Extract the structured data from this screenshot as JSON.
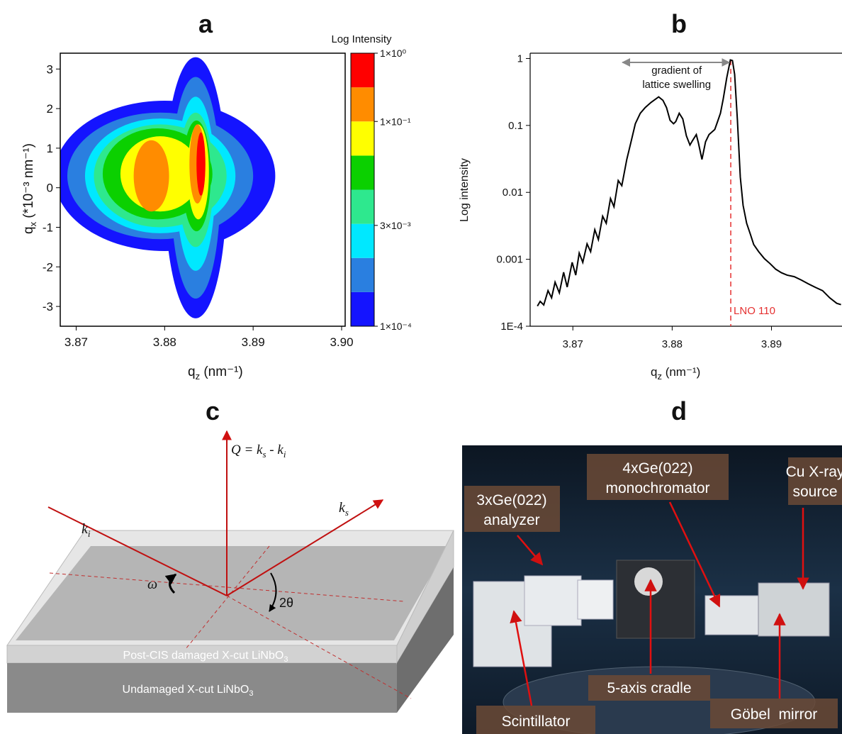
{
  "figure": {
    "panel_labels": [
      "a",
      "b",
      "c",
      "d"
    ]
  },
  "chart_data": [
    {
      "type": "contour",
      "x_label": [
        "q",
        "z",
        " (nm⁻¹)"
      ],
      "y_label": [
        "q",
        "x",
        " (*10⁻³ nm⁻¹)"
      ],
      "xlim": [
        3.8682,
        3.9004
      ],
      "ylim": [
        -3.5,
        3.4
      ],
      "xticks": [
        3.87,
        3.88,
        3.89,
        {
          "value": 3.9,
          "label": "3.90"
        }
      ],
      "yticks": [
        -3,
        -2,
        -1,
        0,
        1,
        2,
        3
      ],
      "colorbar": {
        "title": "Log Intensity",
        "log": true,
        "lim": [
          0.0001,
          1
        ],
        "ticks": [
          {
            "value": 0.0001,
            "label": "1×10⁻⁴"
          },
          {
            "value": 0.003,
            "label": "3×10⁻³"
          },
          {
            "value": 0.1,
            "label": "1×10⁻¹"
          },
          {
            "value": 1,
            "label": "1×10⁰"
          }
        ],
        "levels": [
          0.0001,
          0.000316,
          0.001,
          0.00316,
          0.01,
          0.0316,
          0.1,
          0.316,
          1
        ],
        "colors": [
          "#1414ff",
          "#2a7fe0",
          "#00e8ff",
          "#2ee88e",
          "#0bd000",
          "#ffff00",
          "#ff8c00",
          "#ff0000"
        ]
      },
      "regions": [
        {
          "qz": 3.88,
          "qx": 0.3,
          "rqz": 0.0125,
          "rqx": 1.9,
          "value": 0.0001
        },
        {
          "qz": 3.8835,
          "qx": 0,
          "rqz": 0.0035,
          "rqx": 3.3,
          "value": 0.0001
        },
        {
          "qz": 3.8795,
          "qx": 0.3,
          "rqz": 0.0105,
          "rqx": 1.6,
          "value": 0.000316
        },
        {
          "qz": 3.8835,
          "qx": 0,
          "rqz": 0.0028,
          "rqx": 2.8,
          "value": 0.000316
        },
        {
          "qz": 3.8795,
          "qx": 0.3,
          "rqz": 0.0085,
          "rqx": 1.45,
          "value": 0.001
        },
        {
          "qz": 3.8835,
          "qx": 0.1,
          "rqz": 0.0022,
          "rqx": 2.2,
          "value": 0.001
        },
        {
          "qz": 3.8795,
          "qx": 0.3,
          "rqz": 0.0075,
          "rqx": 1.3,
          "value": 0.00316
        },
        {
          "qz": 3.8835,
          "qx": 0.2,
          "rqz": 0.002,
          "rqx": 1.7,
          "value": 0.00316
        },
        {
          "qz": 3.8792,
          "qx": 0.35,
          "rqz": 0.0062,
          "rqx": 1.15,
          "value": 0.01
        },
        {
          "qz": 3.8836,
          "qx": 0.3,
          "rqz": 0.0016,
          "rqx": 1.4,
          "value": 0.01
        },
        {
          "qz": 3.8795,
          "qx": 0.35,
          "rqz": 0.0045,
          "rqx": 0.95,
          "value": 0.0316
        },
        {
          "qz": 3.8838,
          "qx": 0.4,
          "rqz": 0.0012,
          "rqx": 1.2,
          "value": 0.0316
        },
        {
          "qz": 3.8785,
          "qx": 0.3,
          "rqz": 0.002,
          "rqx": 0.9,
          "value": 0.1
        },
        {
          "qz": 3.8837,
          "qx": 0.6,
          "rqz": 0.0009,
          "rqx": 1.0,
          "value": 0.1
        },
        {
          "qz": 3.8841,
          "qx": 0.6,
          "rqz": 0.0005,
          "rqx": 0.8,
          "value": 0.316
        }
      ]
    },
    {
      "type": "line",
      "x_label": [
        "q",
        "z",
        " (nm⁻¹)"
      ],
      "y_label": "Log intensity",
      "log_y": true,
      "xlim": [
        3.8657,
        3.8971
      ],
      "ylim": [
        0.0001,
        1.2
      ],
      "xticks": [
        3.87,
        3.88,
        3.89
      ],
      "yticks": [
        {
          "value": 0.0001,
          "label": "1E-4"
        },
        0.001,
        0.01,
        0.1,
        1
      ],
      "series": [
        {
          "color": "#000000",
          "x": [
            3.86643,
            3.86671,
            3.86707,
            3.8675,
            3.86786,
            3.86821,
            3.86864,
            3.86907,
            3.86943,
            3.86993,
            3.87029,
            3.87064,
            3.871,
            3.87143,
            3.87179,
            3.87221,
            3.87257,
            3.873,
            3.87336,
            3.87379,
            3.87414,
            3.87457,
            3.87493,
            3.87543,
            3.87586,
            3.87629,
            3.87679,
            3.87729,
            3.87786,
            3.87864,
            3.87907,
            3.87943,
            3.87979,
            3.88014,
            3.88036,
            3.88071,
            3.88107,
            3.88143,
            3.88179,
            3.88207,
            3.88243,
            3.88264,
            3.883,
            3.88336,
            3.88371,
            3.88429,
            3.88457,
            3.88486,
            3.88514,
            3.8855,
            3.88586,
            3.88607,
            3.88629,
            3.88657,
            3.88686,
            3.88714,
            3.8875,
            3.88786,
            3.88821,
            3.88871,
            3.88929,
            3.88986,
            3.89043,
            3.891,
            3.89157,
            3.89229,
            3.893,
            3.89371,
            3.89443,
            3.89514,
            3.89586,
            3.89657,
            3.897
          ],
          "values": [
            0.0002,
            0.000235,
            0.000208,
            0.00034,
            0.000266,
            0.000455,
            0.000315,
            0.00064,
            0.000384,
            0.0009,
            0.00058,
            0.00124,
            0.0009,
            0.0017,
            0.0013,
            0.00277,
            0.00197,
            0.0044,
            0.00345,
            0.0081,
            0.0061,
            0.015,
            0.0126,
            0.031,
            0.057,
            0.106,
            0.152,
            0.185,
            0.22,
            0.267,
            0.237,
            0.185,
            0.119,
            0.106,
            0.114,
            0.152,
            0.125,
            0.07,
            0.051,
            0.06,
            0.073,
            0.055,
            0.031,
            0.057,
            0.073,
            0.087,
            0.114,
            0.152,
            0.248,
            0.52,
            0.95,
            0.93,
            0.58,
            0.119,
            0.0169,
            0.0064,
            0.00345,
            0.0024,
            0.00166,
            0.0013,
            0.00102,
            0.00086,
            0.00071,
            0.00063,
            0.00058,
            0.00055,
            0.00049,
            0.00043,
            0.00038,
            0.00034,
            0.000266,
            0.00022,
            0.00021
          ]
        }
      ],
      "reference_line": {
        "x": 3.8859,
        "label": "LNO 110",
        "color": "#e53030"
      },
      "annotation": {
        "lines": [
          "gradient of",
          "lattice swelling"
        ],
        "x_range": [
          3.875,
          3.8859
        ]
      }
    }
  ],
  "diagram": {
    "q_vector": [
      "Q = k",
      "s",
      " - k",
      "i"
    ],
    "incident": [
      "k",
      "i"
    ],
    "scattered": [
      "k",
      "s"
    ],
    "omega": "ω",
    "two_theta": "2θ",
    "top_layer": [
      "Post-CIS damaged X-cut LiNbO",
      "3"
    ],
    "substrate": [
      "Undamaged X-cut LiNbO",
      "3"
    ]
  },
  "photo": {
    "labels": [
      [
        "3xGe(022)",
        "analyzer"
      ],
      [
        "4xGe(022)",
        "monochromator"
      ],
      [
        "Cu X-ray",
        "source"
      ],
      [
        "5-axis cradle"
      ],
      [
        "Scintillator"
      ],
      [
        "Göbel  mirror"
      ]
    ]
  }
}
